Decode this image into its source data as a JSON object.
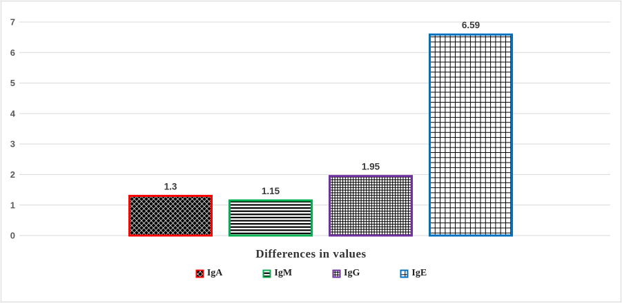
{
  "chart_data": {
    "type": "bar",
    "categories": [
      "IgA",
      "IgM",
      "IgG",
      "IgE"
    ],
    "values": [
      1.3,
      1.15,
      1.95,
      6.59
    ],
    "data_labels": [
      "1.3",
      "1.15",
      "1.95",
      "6.59"
    ],
    "xlabel": "Differences in values",
    "ylabel": "",
    "ylim": [
      0,
      7
    ],
    "ytick_interval": 1,
    "yticks": [
      "0",
      "1",
      "2",
      "3",
      "4",
      "5",
      "6",
      "7"
    ],
    "grid": true,
    "legend_position": "bottom",
    "legend_items": [
      "IgA",
      "IgM",
      "IgG",
      "IgE"
    ],
    "series_styles": [
      {
        "name": "IgA",
        "border_color": "#FF0000",
        "pattern": "diamond",
        "pattern_color": "#000000",
        "background": "#FFFFFF"
      },
      {
        "name": "IgM",
        "border_color": "#00B050",
        "pattern": "horizontal-lines",
        "pattern_color": "#000000",
        "background": "#FFFFFF"
      },
      {
        "name": "IgG",
        "border_color": "#7030A0",
        "pattern": "small-grid",
        "pattern_color": "#000000",
        "background": "#FFFFFF"
      },
      {
        "name": "IgE",
        "border_color": "#0070C0",
        "pattern": "large-grid",
        "pattern_color": "#000000",
        "background": "#FFFFFF"
      }
    ],
    "axis_colors": {
      "tick_label": "#595959",
      "gridline": "#D9D9D9",
      "data_label": "#3A3A3A",
      "axis_title": "#333333",
      "chart_border": "#D6D6D6"
    }
  }
}
